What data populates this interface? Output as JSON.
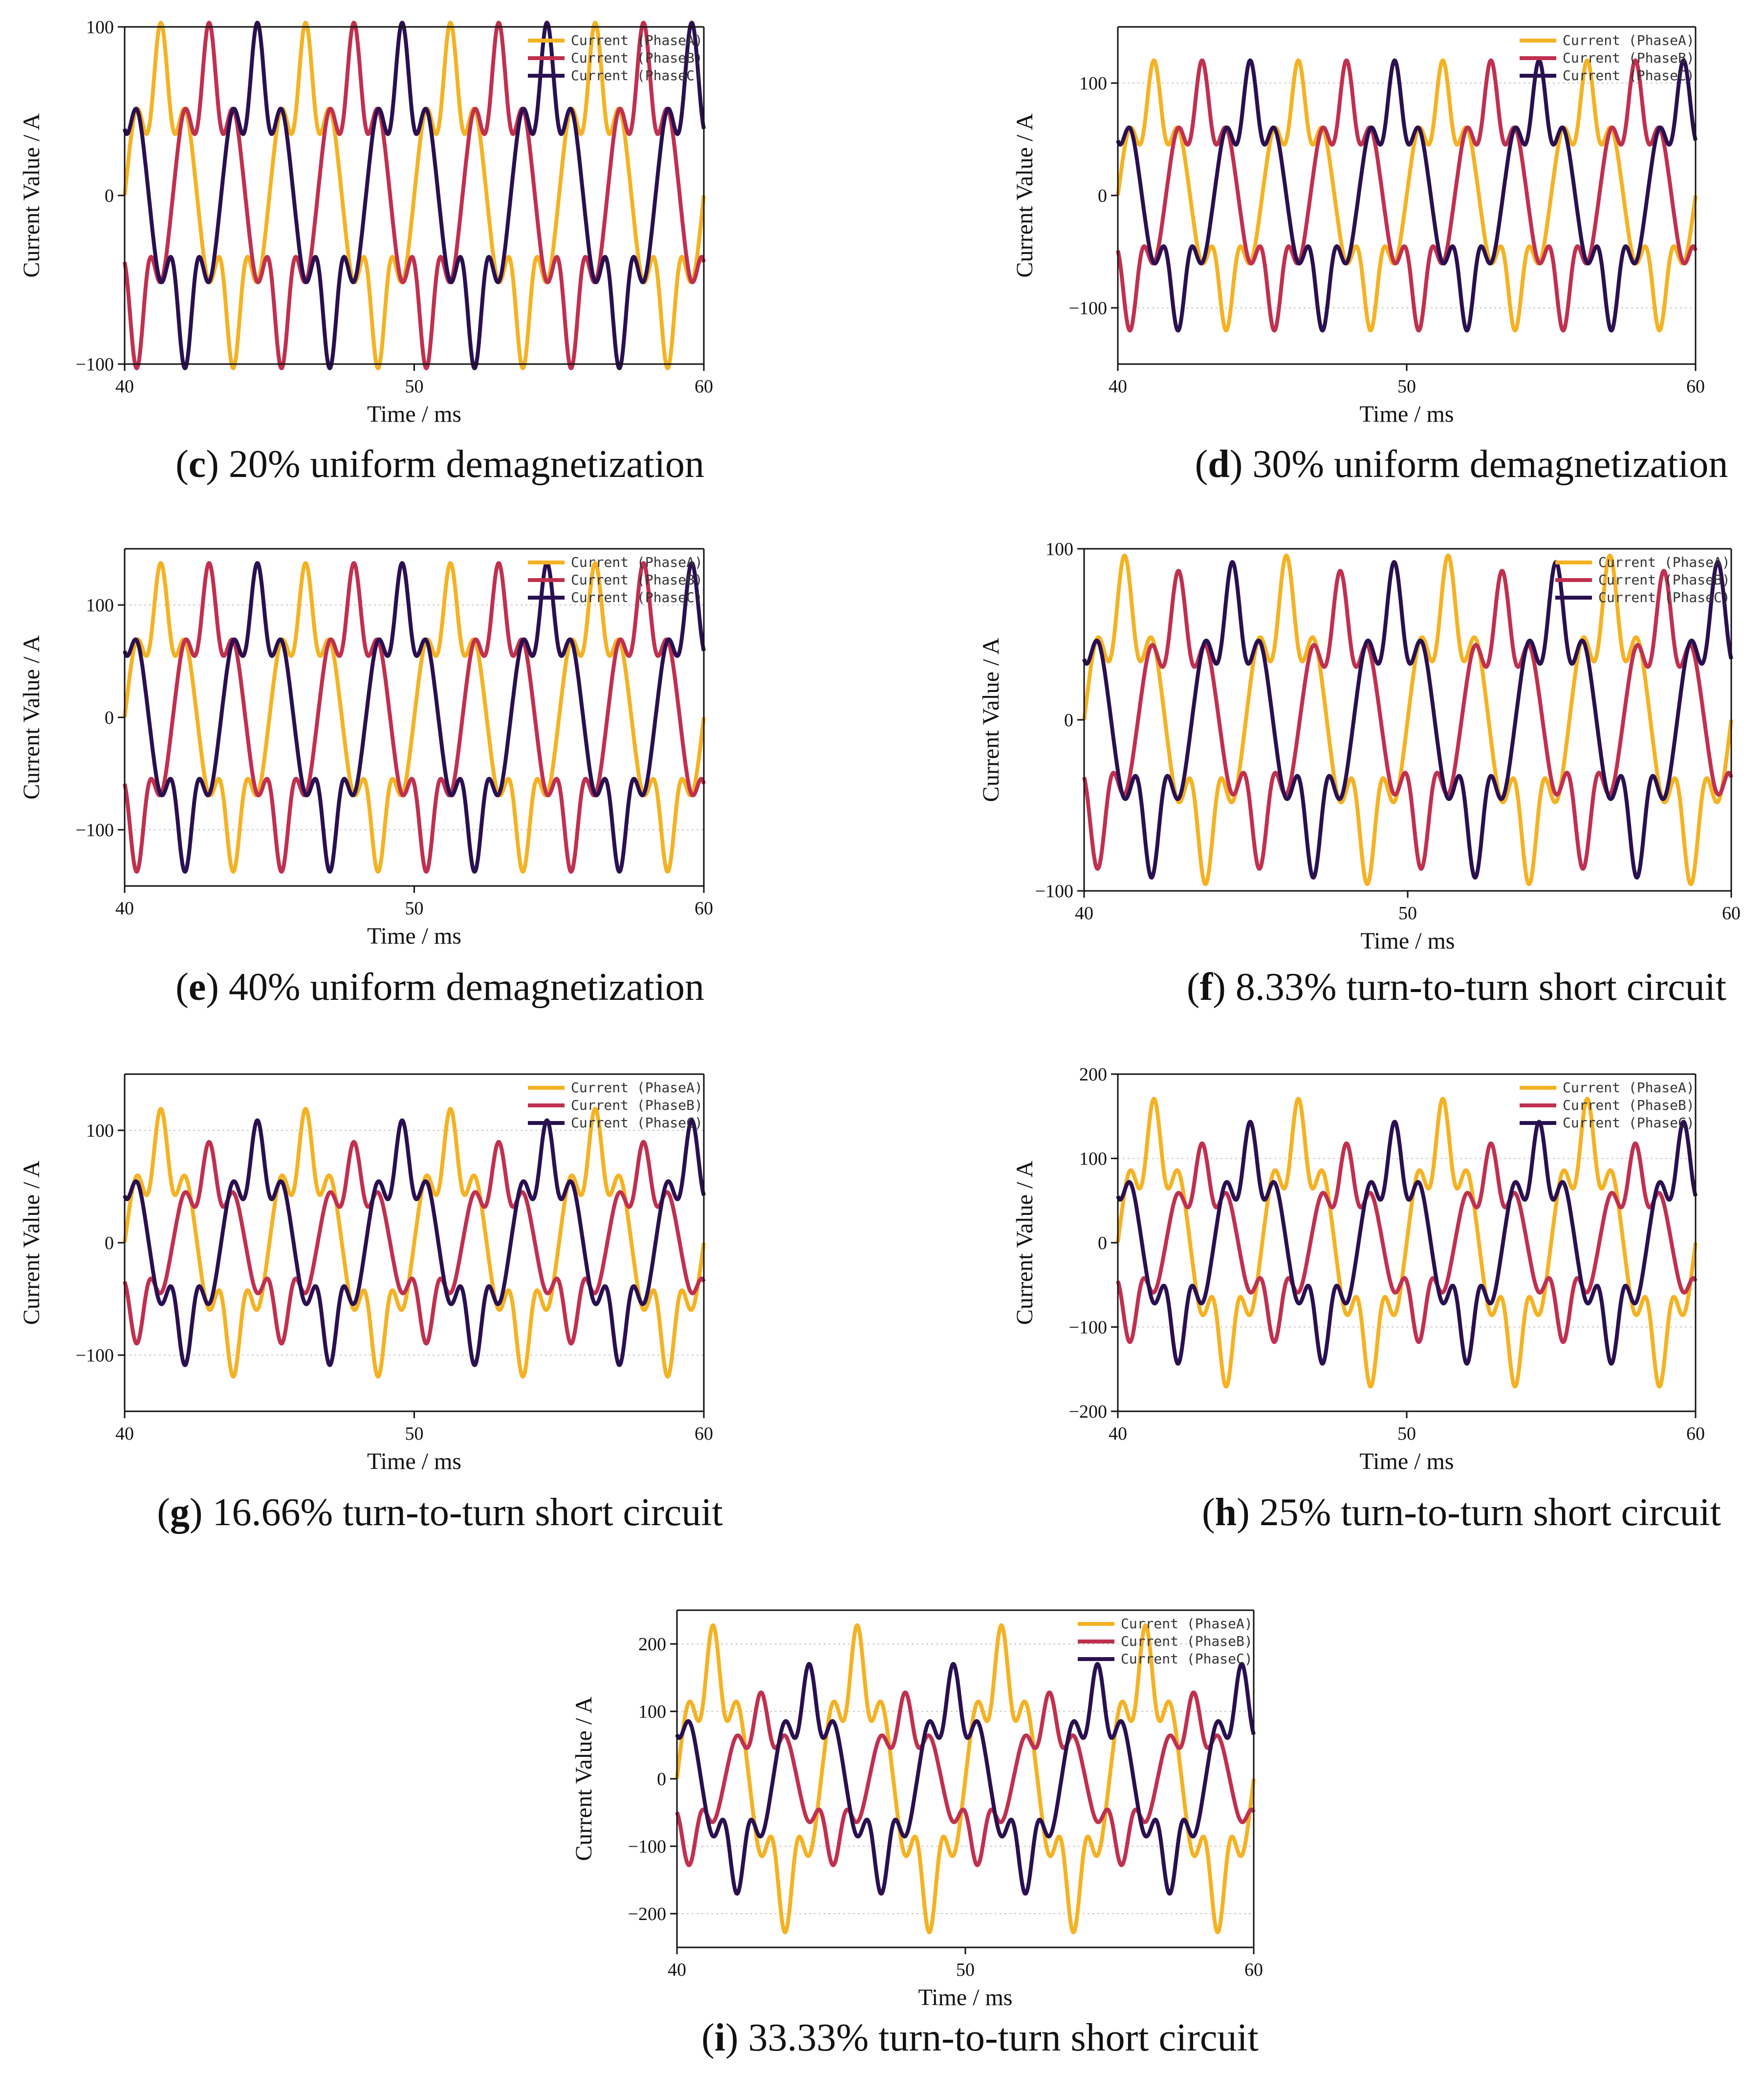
{
  "figure": {
    "panels": [
      {
        "id": "c",
        "label": "c",
        "caption": "20% uniform demagnetization"
      },
      {
        "id": "d",
        "label": "d",
        "caption": "30% uniform demagnetization"
      },
      {
        "id": "e",
        "label": "e",
        "caption": "40% uniform demagnetization"
      },
      {
        "id": "f",
        "label": "f",
        "caption": "8.33% turn-to-turn short circuit"
      },
      {
        "id": "g",
        "label": "g",
        "caption": "16.66% turn-to-turn short circuit"
      },
      {
        "id": "h",
        "label": "h",
        "caption": "25% turn-to-turn short circuit"
      },
      {
        "id": "i",
        "label": "i",
        "caption": "33.33% turn-to-turn short circuit"
      }
    ],
    "legend_labels": [
      "Current (PhaseA)",
      "Current (PhaseB)",
      "Current (PhaseC)"
    ]
  },
  "colors": {
    "phaseA": "#F4B223",
    "phaseB": "#C0304F",
    "phaseC": "#2A1050"
  },
  "chart_data": [
    {
      "panel": "c",
      "type": "line",
      "xlabel": "Time / ms",
      "ylabel": "Current Value / A",
      "xlim": [
        40,
        60
      ],
      "ylim": [
        -100,
        100
      ],
      "xticks": [
        40,
        50,
        60
      ],
      "yticks": [
        -100,
        0,
        100
      ],
      "gridlines": [],
      "freq_khz": 0.2,
      "series": [
        {
          "name": "Current (PhaseA)",
          "amplitude": 80,
          "harmonic_ratio": 0.32,
          "phase_deg": 0,
          "offset": 0
        },
        {
          "name": "Current (PhaseB)",
          "amplitude": 80,
          "harmonic_ratio": 0.32,
          "phase_deg": -120,
          "offset": 0
        },
        {
          "name": "Current (PhaseC)",
          "amplitude": 80,
          "harmonic_ratio": 0.32,
          "phase_deg": 120,
          "offset": 0
        }
      ]
    },
    {
      "panel": "d",
      "type": "line",
      "xlabel": "Time / ms",
      "ylabel": "Current Value / A",
      "xlim": [
        40,
        60
      ],
      "ylim": [
        -150,
        150
      ],
      "xticks": [
        40,
        50,
        60
      ],
      "yticks": [
        -100,
        0,
        100
      ],
      "gridlines": [
        -100,
        100
      ],
      "freq_khz": 0.2,
      "series": [
        {
          "name": "Current (PhaseA)",
          "amplitude": 95,
          "harmonic_ratio": 0.3,
          "phase_deg": 0,
          "offset": 0
        },
        {
          "name": "Current (PhaseB)",
          "amplitude": 95,
          "harmonic_ratio": 0.3,
          "phase_deg": -120,
          "offset": 0
        },
        {
          "name": "Current (PhaseC)",
          "amplitude": 95,
          "harmonic_ratio": 0.3,
          "phase_deg": 120,
          "offset": 0
        }
      ]
    },
    {
      "panel": "e",
      "type": "line",
      "xlabel": "Time / ms",
      "ylabel": "Current Value / A",
      "xlim": [
        40,
        60
      ],
      "ylim": [
        -150,
        150
      ],
      "xticks": [
        40,
        50,
        60
      ],
      "yticks": [
        -100,
        0,
        100
      ],
      "gridlines": [
        -100,
        100
      ],
      "freq_khz": 0.2,
      "series": [
        {
          "name": "Current (PhaseA)",
          "amplitude": 110,
          "harmonic_ratio": 0.28,
          "phase_deg": 0,
          "offset": 0
        },
        {
          "name": "Current (PhaseB)",
          "amplitude": 110,
          "harmonic_ratio": 0.28,
          "phase_deg": -120,
          "offset": 0
        },
        {
          "name": "Current (PhaseC)",
          "amplitude": 110,
          "harmonic_ratio": 0.28,
          "phase_deg": 120,
          "offset": 0
        }
      ]
    },
    {
      "panel": "f",
      "type": "line",
      "xlabel": "Time / ms",
      "ylabel": "Current Value / A",
      "xlim": [
        40,
        60
      ],
      "ylim": [
        -100,
        100
      ],
      "xticks": [
        40,
        50,
        60
      ],
      "yticks": [
        -100,
        0,
        100
      ],
      "gridlines": [],
      "freq_khz": 0.2,
      "series": [
        {
          "name": "Current (PhaseA)",
          "amplitude": 75,
          "harmonic_ratio": 0.32,
          "phase_deg": 0,
          "offset": 0
        },
        {
          "name": "Current (PhaseB)",
          "amplitude": 68,
          "harmonic_ratio": 0.32,
          "phase_deg": -120,
          "offset": 0
        },
        {
          "name": "Current (PhaseC)",
          "amplitude": 72,
          "harmonic_ratio": 0.32,
          "phase_deg": 120,
          "offset": 0
        }
      ]
    },
    {
      "panel": "g",
      "type": "line",
      "xlabel": "Time / ms",
      "ylabel": "Current Value / A",
      "xlim": [
        40,
        60
      ],
      "ylim": [
        -150,
        150
      ],
      "xticks": [
        40,
        50,
        60
      ],
      "yticks": [
        -100,
        0,
        100
      ],
      "gridlines": [
        -100,
        100
      ],
      "freq_khz": 0.2,
      "series": [
        {
          "name": "Current (PhaseA)",
          "amplitude": 93,
          "harmonic_ratio": 0.32,
          "phase_deg": 0,
          "offset": 0
        },
        {
          "name": "Current (PhaseB)",
          "amplitude": 70,
          "harmonic_ratio": 0.32,
          "phase_deg": -120,
          "offset": 0
        },
        {
          "name": "Current (PhaseC)",
          "amplitude": 85,
          "harmonic_ratio": 0.32,
          "phase_deg": 120,
          "offset": 0
        }
      ]
    },
    {
      "panel": "h",
      "type": "line",
      "xlabel": "Time / ms",
      "ylabel": "Current Value / A",
      "xlim": [
        40,
        60
      ],
      "ylim": [
        -200,
        200
      ],
      "xticks": [
        40,
        50,
        60
      ],
      "yticks": [
        -200,
        -100,
        0,
        100,
        200
      ],
      "gridlines": [
        -200,
        -100,
        100,
        200
      ],
      "freq_khz": 0.2,
      "series": [
        {
          "name": "Current (PhaseA)",
          "amplitude": 135,
          "harmonic_ratio": 0.3,
          "phase_deg": 0,
          "offset": 0
        },
        {
          "name": "Current (PhaseB)",
          "amplitude": 92,
          "harmonic_ratio": 0.32,
          "phase_deg": -120,
          "offset": 0
        },
        {
          "name": "Current (PhaseC)",
          "amplitude": 112,
          "harmonic_ratio": 0.32,
          "phase_deg": 120,
          "offset": 0
        }
      ]
    },
    {
      "panel": "i",
      "type": "line",
      "xlabel": "Time / ms",
      "ylabel": "Current Value / A",
      "xlim": [
        40,
        60
      ],
      "ylim": [
        -250,
        250
      ],
      "xticks": [
        40,
        50,
        60
      ],
      "yticks": [
        -200,
        -100,
        0,
        100,
        200
      ],
      "gridlines": [
        -200,
        -100,
        100,
        200
      ],
      "freq_khz": 0.2,
      "series": [
        {
          "name": "Current (PhaseA)",
          "amplitude": 180,
          "harmonic_ratio": 0.3,
          "phase_deg": 0,
          "offset": 0
        },
        {
          "name": "Current (PhaseB)",
          "amplitude": 100,
          "harmonic_ratio": 0.32,
          "phase_deg": -120,
          "offset": 0
        },
        {
          "name": "Current (PhaseC)",
          "amplitude": 133,
          "harmonic_ratio": 0.32,
          "phase_deg": 120,
          "offset": 0
        }
      ]
    }
  ]
}
